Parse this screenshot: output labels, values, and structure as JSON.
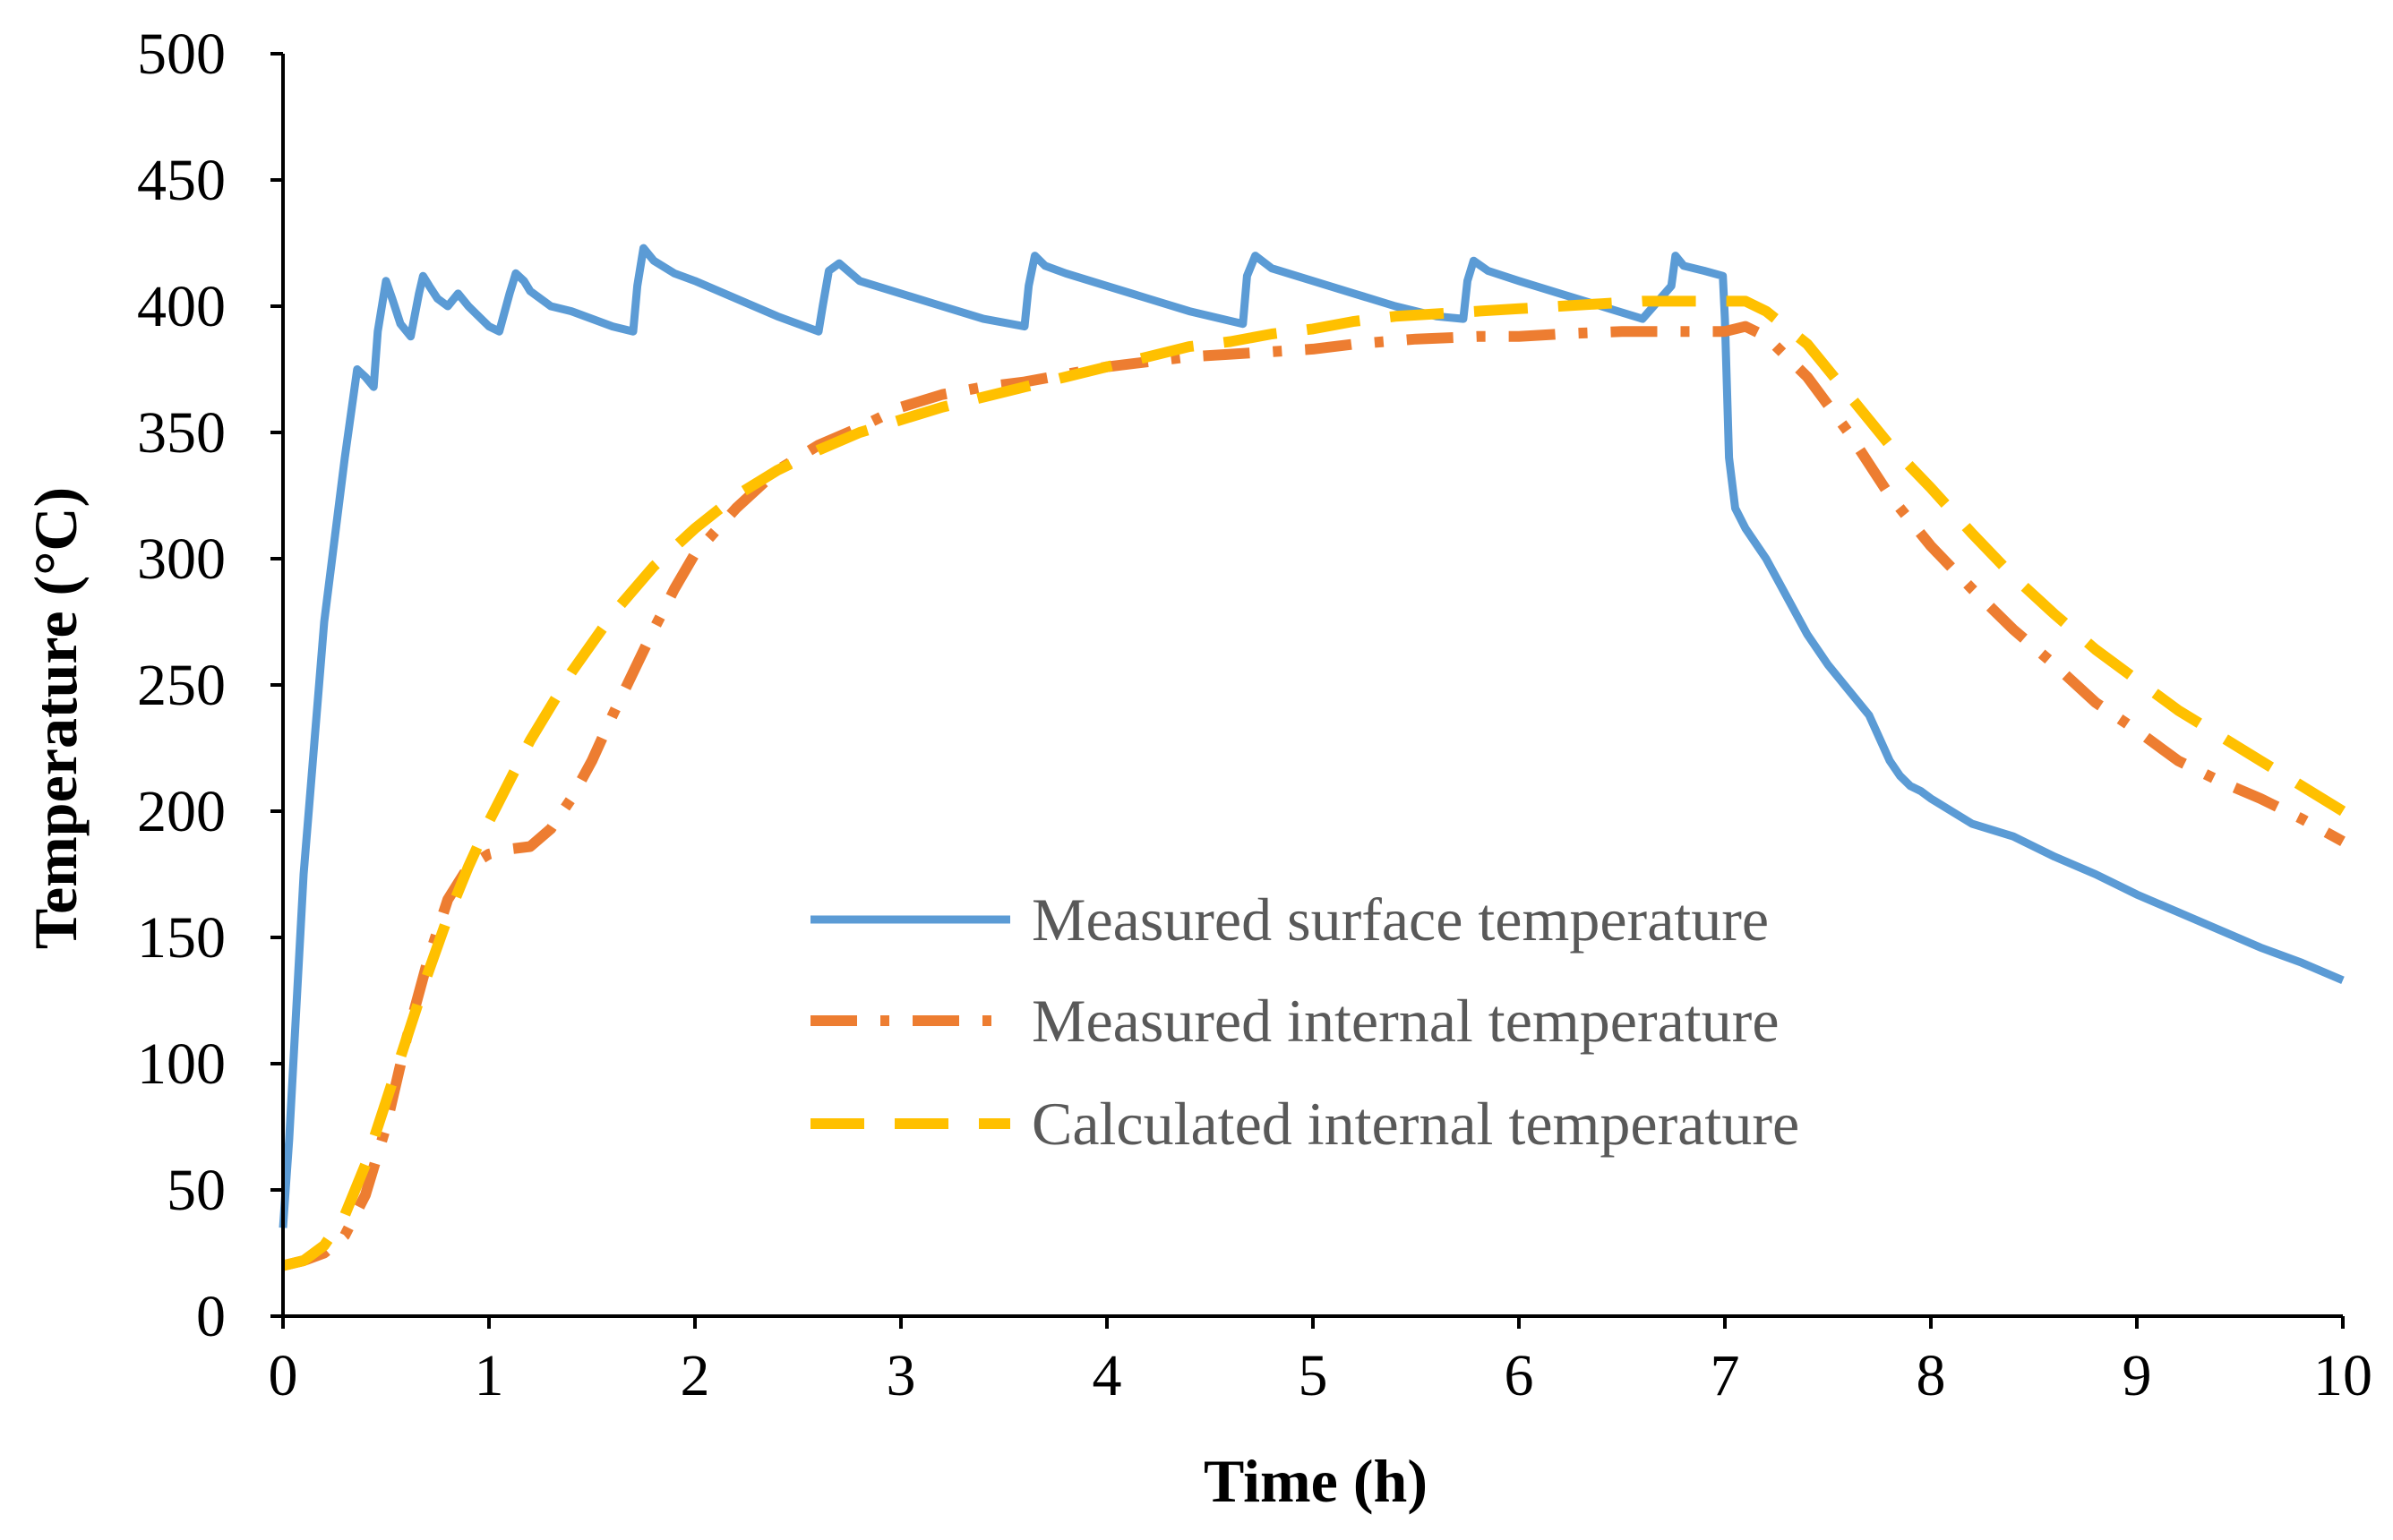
{
  "chart_data": {
    "type": "line",
    "title": "",
    "xlabel": "Time (h)",
    "ylabel": "Temperature (°C)",
    "xlim": [
      0,
      10
    ],
    "ylim": [
      0,
      500
    ],
    "xticks": [
      "0",
      "1",
      "2",
      "3",
      "4",
      "5",
      "6",
      "7",
      "8",
      "9",
      "10"
    ],
    "yticks": [
      "0",
      "50",
      "100",
      "150",
      "200",
      "250",
      "300",
      "350",
      "400",
      "450",
      "500"
    ],
    "grid": false,
    "legend_position": "center-right",
    "series": [
      {
        "name": "Measured surface temperature",
        "color": "#5B9BD5",
        "style": "solid",
        "x": [
          0.0,
          0.03,
          0.1,
          0.2,
          0.3,
          0.36,
          0.4,
          0.44,
          0.46,
          0.5,
          0.53,
          0.57,
          0.62,
          0.66,
          0.68,
          0.71,
          0.75,
          0.8,
          0.85,
          0.9,
          0.95,
          1.0,
          1.05,
          1.1,
          1.13,
          1.17,
          1.2,
          1.3,
          1.4,
          1.5,
          1.6,
          1.7,
          1.72,
          1.75,
          1.8,
          1.9,
          2.0,
          2.2,
          2.4,
          2.6,
          2.62,
          2.65,
          2.7,
          2.8,
          3.0,
          3.2,
          3.4,
          3.6,
          3.62,
          3.65,
          3.7,
          3.8,
          4.0,
          4.2,
          4.4,
          4.66,
          4.68,
          4.72,
          4.8,
          5.0,
          5.2,
          5.4,
          5.6,
          5.73,
          5.75,
          5.78,
          5.85,
          6.0,
          6.2,
          6.4,
          6.6,
          6.74,
          6.76,
          6.8,
          6.9,
          6.99,
          7.0,
          7.02,
          7.05,
          7.1,
          7.2,
          7.3,
          7.4,
          7.5,
          7.6,
          7.7,
          7.8,
          7.85,
          7.9,
          7.95,
          8.0,
          8.2,
          8.4,
          8.6,
          8.8,
          9.0,
          9.2,
          9.4,
          9.6,
          9.8,
          10.0
        ],
        "y": [
          35,
          70,
          175,
          275,
          340,
          375,
          372,
          368,
          390,
          410,
          403,
          393,
          388,
          405,
          412,
          408,
          403,
          400,
          405,
          400,
          396,
          392,
          390,
          405,
          413,
          410,
          406,
          400,
          398,
          395,
          392,
          390,
          408,
          423,
          418,
          413,
          410,
          403,
          396,
          390,
          400,
          414,
          417,
          410,
          405,
          400,
          395,
          392,
          408,
          420,
          416,
          413,
          408,
          403,
          398,
          393,
          412,
          420,
          415,
          410,
          405,
          400,
          396,
          395,
          410,
          418,
          414,
          410,
          405,
          400,
          395,
          408,
          420,
          416,
          414,
          412,
          395,
          340,
          320,
          312,
          300,
          285,
          270,
          258,
          248,
          238,
          220,
          214,
          210,
          208,
          205,
          195,
          190,
          182,
          175,
          167,
          160,
          153,
          146,
          140,
          133
        ]
      },
      {
        "name": "Measured internal temperature",
        "color": "#ED7D31",
        "style": "dash-dot",
        "x": [
          0.0,
          0.1,
          0.2,
          0.3,
          0.4,
          0.5,
          0.6,
          0.7,
          0.8,
          0.9,
          1.0,
          1.1,
          1.2,
          1.3,
          1.4,
          1.5,
          1.6,
          1.7,
          1.8,
          1.9,
          2.0,
          2.2,
          2.4,
          2.6,
          2.8,
          3.0,
          3.2,
          3.4,
          3.6,
          3.8,
          4.0,
          4.2,
          4.4,
          4.6,
          4.8,
          5.0,
          5.2,
          5.5,
          5.8,
          6.0,
          6.2,
          6.5,
          6.8,
          7.0,
          7.1,
          7.2,
          7.4,
          7.6,
          7.8,
          8.0,
          8.2,
          8.4,
          8.6,
          8.8,
          9.0,
          9.2,
          9.4,
          9.6,
          9.8,
          10.0
        ],
        "y": [
          20,
          22,
          25,
          32,
          48,
          75,
          110,
          140,
          165,
          178,
          183,
          185,
          186,
          193,
          205,
          220,
          238,
          255,
          272,
          288,
          302,
          320,
          335,
          345,
          352,
          360,
          365,
          368,
          370,
          373,
          376,
          378,
          380,
          381,
          382,
          383,
          385,
          387,
          388,
          388,
          389,
          390,
          390,
          390,
          392,
          388,
          372,
          350,
          325,
          305,
          288,
          272,
          258,
          243,
          232,
          220,
          212,
          205,
          197,
          188
        ]
      },
      {
        "name": "Calculated internal temperature",
        "color": "#FFC000",
        "style": "dashed",
        "x": [
          0.0,
          0.1,
          0.2,
          0.3,
          0.4,
          0.5,
          0.6,
          0.7,
          0.8,
          0.9,
          1.0,
          1.2,
          1.4,
          1.6,
          1.8,
          2.0,
          2.2,
          2.4,
          2.6,
          2.8,
          3.0,
          3.2,
          3.4,
          3.6,
          3.8,
          4.0,
          4.2,
          4.4,
          4.6,
          4.8,
          5.0,
          5.2,
          5.4,
          5.6,
          5.8,
          6.0,
          6.2,
          6.4,
          6.6,
          6.8,
          7.0,
          7.1,
          7.2,
          7.4,
          7.6,
          7.8,
          8.0,
          8.2,
          8.4,
          8.6,
          8.8,
          9.0,
          9.2,
          9.4,
          9.6,
          9.8,
          10.0
        ],
        "y": [
          20,
          22,
          28,
          40,
          60,
          85,
          110,
          135,
          158,
          178,
          196,
          228,
          255,
          278,
          297,
          312,
          325,
          335,
          343,
          350,
          355,
          360,
          364,
          368,
          372,
          376,
          380,
          384,
          386,
          389,
          391,
          394,
          396,
          397,
          398,
          399,
          400,
          401,
          402,
          402,
          402,
          402,
          398,
          385,
          365,
          345,
          328,
          310,
          293,
          278,
          264,
          252,
          240,
          230,
          220,
          210,
          200
        ]
      }
    ]
  }
}
